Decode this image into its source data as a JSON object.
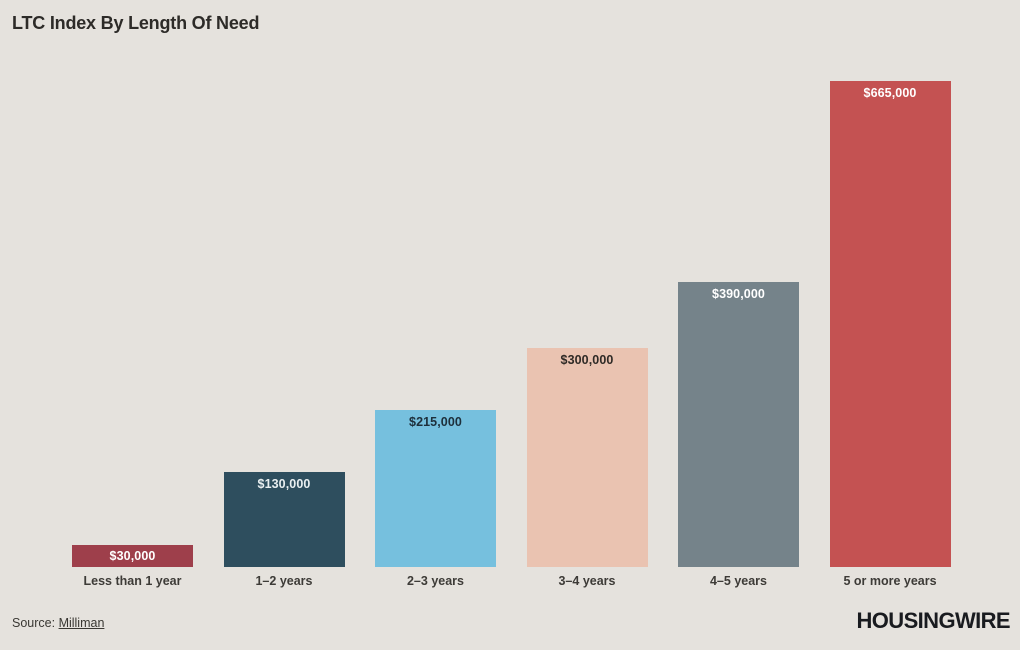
{
  "title": "LTC Index By Length Of Need",
  "source": {
    "prefix": "Source: ",
    "link_label": "Milliman"
  },
  "brand": "HOUSINGWIRE",
  "colors": {
    "background": "#e5e2dd",
    "title_text": "#2d2b28",
    "category_text": "#3d3b37",
    "brand_text": "#191b1f"
  },
  "chart_data": {
    "type": "bar",
    "title": "LTC Index By Length Of Need",
    "categories": [
      "Less than 1 year",
      "1–2 years",
      "2–3 years",
      "3–4 years",
      "4–5 years",
      "5 or more years"
    ],
    "values": [
      30000,
      130000,
      215000,
      300000,
      390000,
      665000
    ],
    "value_labels": [
      "$30,000",
      "$130,000",
      "$215,000",
      "$300,000",
      "$390,000",
      "$665,000"
    ],
    "bar_colors": [
      "#9e3f4b",
      "#2e4e5e",
      "#76c0de",
      "#eac3b1",
      "#75838a",
      "#c45252"
    ],
    "value_label_colors": [
      "#ffffff",
      "#e9eff1",
      "#1d2f3b",
      "#2f2a26",
      "#ffffff",
      "#ffffff"
    ],
    "xlabel": "",
    "ylabel": "",
    "ylim": [
      0,
      680000
    ],
    "grid": false,
    "legend": false,
    "value_labels_position": "inside-top"
  }
}
